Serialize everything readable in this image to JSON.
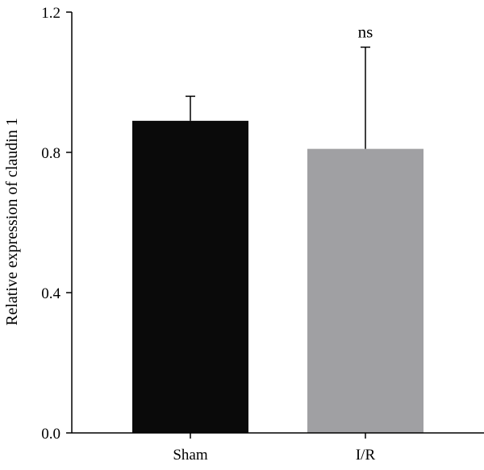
{
  "chart_data": {
    "type": "bar",
    "title": "",
    "xlabel": "",
    "ylabel": "Relative expression of claudin 1",
    "categories": [
      "Sham",
      "I/R"
    ],
    "values": [
      0.89,
      0.81
    ],
    "error_upper": [
      0.96,
      1.1
    ],
    "annotations": [
      "",
      "ns"
    ],
    "bar_colors": [
      "#0a0a0a",
      "#a0a0a3"
    ],
    "ylim": [
      0,
      1.2
    ],
    "yticks": [
      0.0,
      0.4,
      0.8,
      1.2
    ],
    "ytick_labels": [
      "0.0",
      "0.4",
      "0.8",
      "1.2"
    ],
    "grid": false,
    "legend": "none"
  }
}
